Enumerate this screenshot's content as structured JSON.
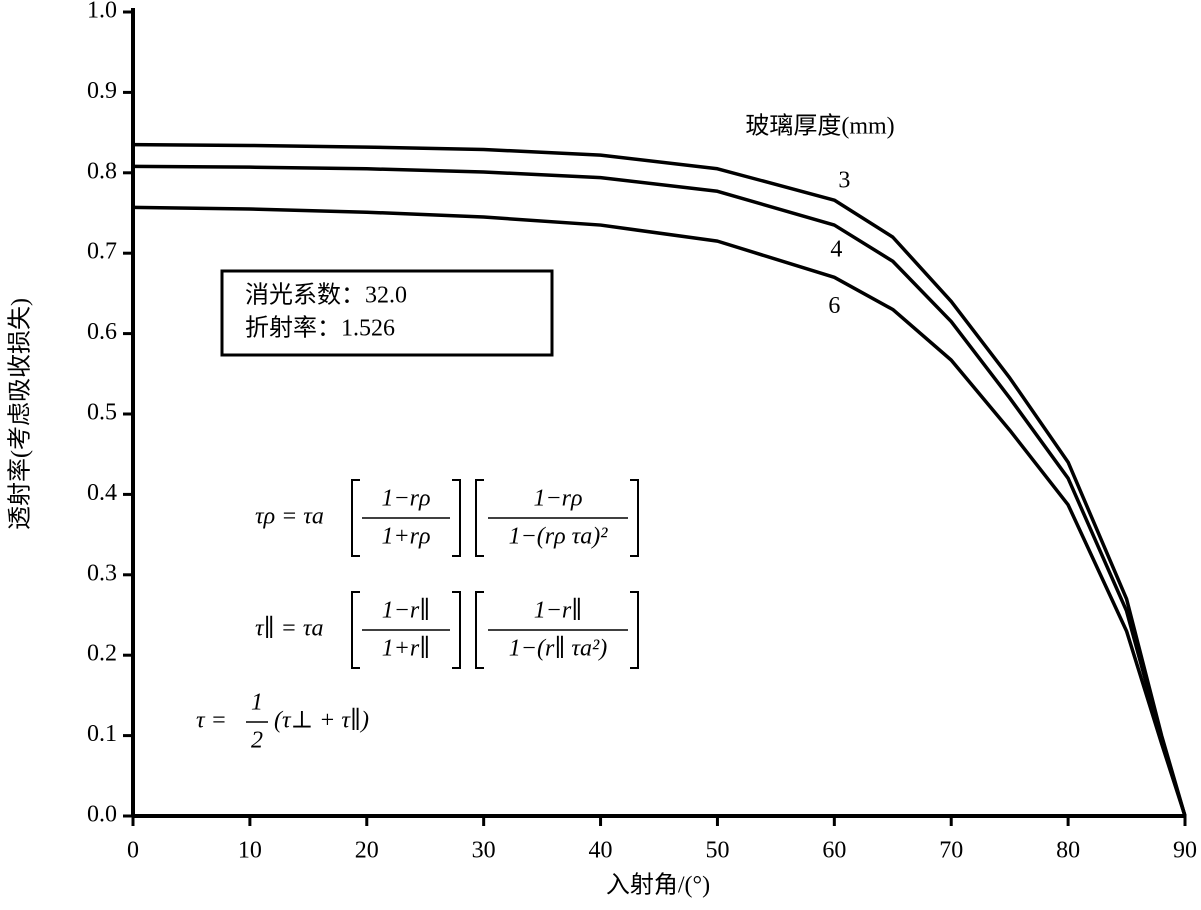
{
  "chart_data": {
    "type": "line",
    "x_label": "入射角/(°)",
    "y_label": "透射率(考虑吸收损失)",
    "legend_title": "玻璃厚度(mm)",
    "x": [
      0,
      10,
      20,
      30,
      40,
      50,
      60,
      65,
      70,
      75,
      80,
      85,
      88,
      90
    ],
    "series": [
      {
        "name": "3",
        "color": "#000000",
        "values": [
          0.835,
          0.834,
          0.832,
          0.829,
          0.822,
          0.805,
          0.766,
          0.72,
          0.64,
          0.545,
          0.44,
          0.27,
          0.1,
          0
        ]
      },
      {
        "name": "4",
        "color": "#000000",
        "values": [
          0.808,
          0.807,
          0.805,
          0.801,
          0.794,
          0.777,
          0.735,
          0.69,
          0.615,
          0.52,
          0.42,
          0.255,
          0.095,
          0
        ]
      },
      {
        "name": "6",
        "color": "#000000",
        "values": [
          0.757,
          0.755,
          0.751,
          0.745,
          0.735,
          0.715,
          0.67,
          0.63,
          0.567,
          0.48,
          0.387,
          0.23,
          0.09,
          0
        ]
      }
    ],
    "xlim": [
      0,
      90
    ],
    "ylim": [
      0,
      1
    ],
    "xticks": [
      0,
      10,
      20,
      30,
      40,
      50,
      60,
      70,
      80,
      90
    ],
    "yticks": [
      {
        "value": 0,
        "label": "0.0"
      },
      0.1,
      0.2,
      0.3,
      0.4,
      0.5,
      0.6,
      0.7,
      0.8,
      0.9,
      {
        "value": 1,
        "label": "1.0"
      }
    ],
    "info_box": [
      "消光系数：32.0",
      "折射率：1.526"
    ],
    "formulas": {
      "f1": {
        "lhs": "τρ = τa",
        "num1": "1−rρ",
        "den1": "1+rρ",
        "num2": "1−rρ",
        "den2": "1−(rρ τa)²"
      },
      "f2": {
        "lhs": "τ∥ = τa",
        "num1": "1−r∥",
        "den1": "1+r∥",
        "num2": "1−r∥",
        "den2": "1−(r∥ τa²)"
      },
      "f3": {
        "lhs": "τ =",
        "num": "1",
        "den": "2",
        "rhs": "(τ⊥ + τ∥)"
      }
    }
  }
}
